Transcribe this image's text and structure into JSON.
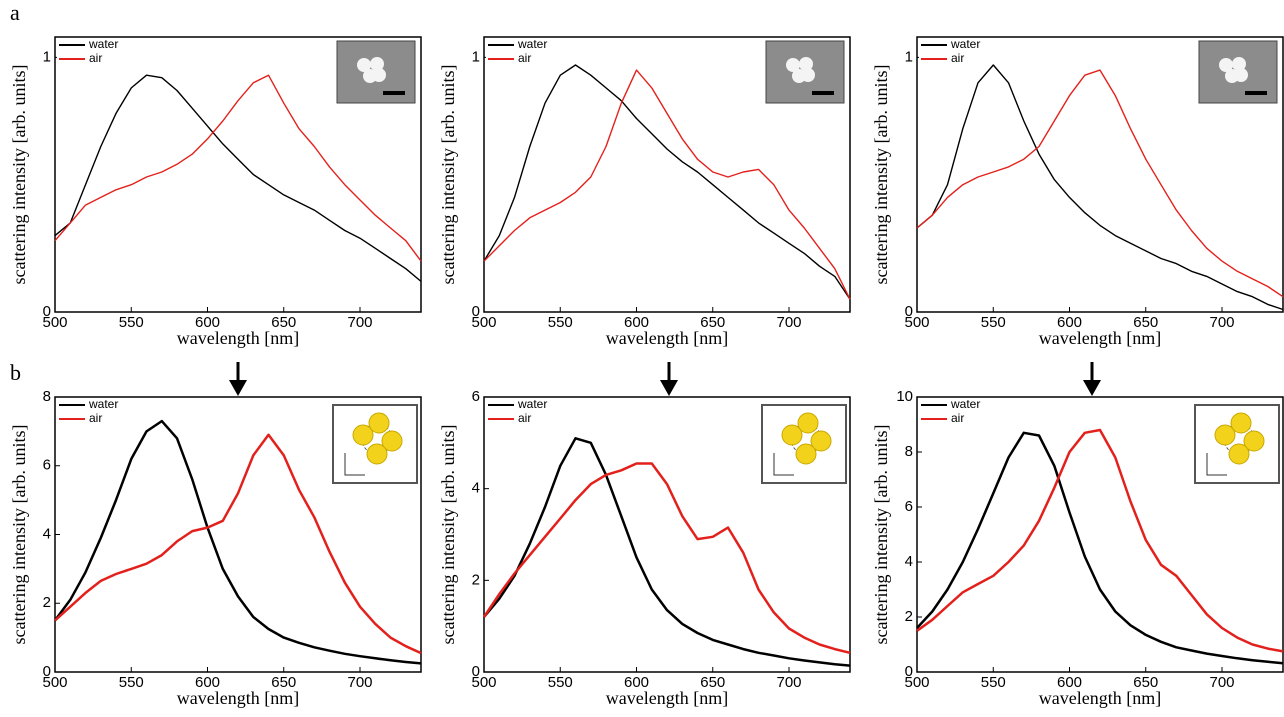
{
  "chart_data": [
    {
      "type": "line",
      "panel_label": "a",
      "xlabel": "wavelength [nm]",
      "ylabel": "scattering intensity [arb. units]",
      "x": [
        500,
        510,
        520,
        530,
        540,
        550,
        560,
        570,
        580,
        590,
        600,
        610,
        620,
        630,
        640,
        650,
        660,
        670,
        680,
        690,
        700,
        710,
        720,
        730,
        740
      ],
      "xlim": [
        500,
        740
      ],
      "xticks": [
        500,
        550,
        600,
        650,
        700
      ],
      "ylim": [
        0,
        1.08
      ],
      "yticks": [
        0,
        1
      ],
      "legend": "upper left",
      "series": [
        {
          "name": "water",
          "color": "#000000",
          "values": [
            0.3,
            0.35,
            0.5,
            0.65,
            0.78,
            0.88,
            0.93,
            0.92,
            0.87,
            0.8,
            0.73,
            0.66,
            0.6,
            0.54,
            0.5,
            0.46,
            0.43,
            0.4,
            0.36,
            0.32,
            0.29,
            0.25,
            0.21,
            0.17,
            0.12
          ]
        },
        {
          "name": "air",
          "color": "#e3211c",
          "values": [
            0.28,
            0.35,
            0.42,
            0.45,
            0.48,
            0.5,
            0.53,
            0.55,
            0.58,
            0.62,
            0.68,
            0.75,
            0.83,
            0.9,
            0.93,
            0.82,
            0.72,
            0.65,
            0.57,
            0.5,
            0.44,
            0.38,
            0.33,
            0.28,
            0.2
          ]
        }
      ]
    },
    {
      "type": "line",
      "xlabel": "wavelength [nm]",
      "ylabel": "scattering intensity [arb. units]",
      "x": [
        500,
        510,
        520,
        530,
        540,
        550,
        560,
        570,
        580,
        590,
        600,
        610,
        620,
        630,
        640,
        650,
        660,
        670,
        680,
        690,
        700,
        710,
        720,
        730,
        740
      ],
      "xlim": [
        500,
        740
      ],
      "xticks": [
        500,
        550,
        600,
        650,
        700
      ],
      "ylim": [
        0,
        1.08
      ],
      "yticks": [
        0,
        1
      ],
      "legend": "upper left",
      "series": [
        {
          "name": "water",
          "color": "#000000",
          "values": [
            0.2,
            0.3,
            0.45,
            0.65,
            0.82,
            0.93,
            0.97,
            0.93,
            0.88,
            0.83,
            0.76,
            0.7,
            0.64,
            0.59,
            0.55,
            0.5,
            0.45,
            0.4,
            0.35,
            0.31,
            0.27,
            0.23,
            0.18,
            0.14,
            0.05
          ]
        },
        {
          "name": "air",
          "color": "#e3211c",
          "values": [
            0.2,
            0.26,
            0.32,
            0.37,
            0.4,
            0.43,
            0.47,
            0.53,
            0.65,
            0.82,
            0.95,
            0.88,
            0.78,
            0.68,
            0.6,
            0.55,
            0.53,
            0.55,
            0.56,
            0.5,
            0.4,
            0.33,
            0.25,
            0.17,
            0.05
          ]
        }
      ]
    },
    {
      "type": "line",
      "xlabel": "wavelength [nm]",
      "ylabel": "scattering intensity [arb. units]",
      "x": [
        500,
        510,
        520,
        530,
        540,
        550,
        560,
        570,
        580,
        590,
        600,
        610,
        620,
        630,
        640,
        650,
        660,
        670,
        680,
        690,
        700,
        710,
        720,
        730,
        740
      ],
      "xlim": [
        500,
        740
      ],
      "xticks": [
        500,
        550,
        600,
        650,
        700
      ],
      "ylim": [
        0,
        1.08
      ],
      "yticks": [
        0,
        1
      ],
      "legend": "upper left",
      "series": [
        {
          "name": "water",
          "color": "#000000",
          "values": [
            0.33,
            0.38,
            0.5,
            0.72,
            0.9,
            0.97,
            0.9,
            0.75,
            0.62,
            0.52,
            0.45,
            0.39,
            0.34,
            0.3,
            0.27,
            0.24,
            0.21,
            0.19,
            0.16,
            0.14,
            0.11,
            0.08,
            0.06,
            0.03,
            0.01
          ]
        },
        {
          "name": "air",
          "color": "#e3211c",
          "values": [
            0.33,
            0.38,
            0.45,
            0.5,
            0.53,
            0.55,
            0.57,
            0.6,
            0.65,
            0.75,
            0.85,
            0.93,
            0.95,
            0.85,
            0.72,
            0.6,
            0.5,
            0.4,
            0.32,
            0.25,
            0.2,
            0.16,
            0.13,
            0.1,
            0.06
          ]
        }
      ]
    },
    {
      "type": "line",
      "panel_label": "b",
      "xlabel": "wavelength [nm]",
      "ylabel": "scattering intensity [arb. units]",
      "x": [
        500,
        510,
        520,
        530,
        540,
        550,
        560,
        570,
        580,
        590,
        600,
        610,
        620,
        630,
        640,
        650,
        660,
        670,
        680,
        690,
        700,
        710,
        720,
        730,
        740
      ],
      "xlim": [
        500,
        740
      ],
      "xticks": [
        500,
        550,
        600,
        650,
        700
      ],
      "ylim": [
        0,
        8
      ],
      "yticks": [
        0,
        2,
        4,
        6,
        8
      ],
      "legend": "upper left",
      "series": [
        {
          "name": "water",
          "color": "#000000",
          "values": [
            1.5,
            2.1,
            2.9,
            3.9,
            5.0,
            6.2,
            7.0,
            7.3,
            6.8,
            5.6,
            4.2,
            3.0,
            2.2,
            1.6,
            1.25,
            1.0,
            0.85,
            0.72,
            0.62,
            0.53,
            0.46,
            0.4,
            0.34,
            0.29,
            0.25
          ]
        },
        {
          "name": "air",
          "color": "#e3211c",
          "values": [
            1.5,
            1.9,
            2.3,
            2.65,
            2.85,
            3.0,
            3.15,
            3.4,
            3.8,
            4.1,
            4.2,
            4.4,
            5.2,
            6.3,
            6.9,
            6.3,
            5.3,
            4.5,
            3.5,
            2.6,
            1.9,
            1.4,
            1.0,
            0.75,
            0.55
          ]
        }
      ]
    },
    {
      "type": "line",
      "xlabel": "wavelength [nm]",
      "ylabel": "scattering intensity [arb. units]",
      "x": [
        500,
        510,
        520,
        530,
        540,
        550,
        560,
        570,
        580,
        590,
        600,
        610,
        620,
        630,
        640,
        650,
        660,
        670,
        680,
        690,
        700,
        710,
        720,
        730,
        740
      ],
      "xlim": [
        500,
        740
      ],
      "xticks": [
        500,
        550,
        600,
        650,
        700
      ],
      "ylim": [
        0,
        6
      ],
      "yticks": [
        0,
        2,
        4,
        6
      ],
      "legend": "upper left",
      "series": [
        {
          "name": "water",
          "color": "#000000",
          "values": [
            1.2,
            1.6,
            2.1,
            2.8,
            3.6,
            4.5,
            5.1,
            5.0,
            4.3,
            3.4,
            2.5,
            1.8,
            1.35,
            1.05,
            0.85,
            0.7,
            0.6,
            0.5,
            0.42,
            0.36,
            0.3,
            0.25,
            0.21,
            0.17,
            0.14
          ]
        },
        {
          "name": "air",
          "color": "#e3211c",
          "values": [
            1.2,
            1.7,
            2.15,
            2.55,
            2.95,
            3.35,
            3.75,
            4.1,
            4.3,
            4.4,
            4.55,
            4.55,
            4.1,
            3.4,
            2.9,
            2.95,
            3.15,
            2.6,
            1.8,
            1.3,
            0.95,
            0.75,
            0.6,
            0.5,
            0.42
          ]
        }
      ]
    },
    {
      "type": "line",
      "xlabel": "wavelength [nm]",
      "ylabel": "scattering intensity [arb. units]",
      "x": [
        500,
        510,
        520,
        530,
        540,
        550,
        560,
        570,
        580,
        590,
        600,
        610,
        620,
        630,
        640,
        650,
        660,
        670,
        680,
        690,
        700,
        710,
        720,
        730,
        740
      ],
      "xlim": [
        500,
        740
      ],
      "xticks": [
        500,
        550,
        600,
        650,
        700
      ],
      "ylim": [
        0,
        10
      ],
      "yticks": [
        0,
        2,
        4,
        6,
        8,
        10
      ],
      "legend": "upper left",
      "series": [
        {
          "name": "water",
          "color": "#000000",
          "values": [
            1.6,
            2.2,
            3.0,
            4.0,
            5.2,
            6.5,
            7.8,
            8.7,
            8.6,
            7.5,
            5.8,
            4.2,
            3.0,
            2.2,
            1.7,
            1.35,
            1.1,
            0.9,
            0.78,
            0.67,
            0.58,
            0.5,
            0.43,
            0.37,
            0.32
          ]
        },
        {
          "name": "air",
          "color": "#e3211c",
          "values": [
            1.5,
            1.9,
            2.4,
            2.9,
            3.2,
            3.5,
            4.0,
            4.6,
            5.5,
            6.7,
            8.0,
            8.7,
            8.8,
            7.8,
            6.2,
            4.8,
            3.9,
            3.5,
            2.8,
            2.1,
            1.6,
            1.25,
            1.0,
            0.85,
            0.75
          ]
        }
      ]
    }
  ]
}
